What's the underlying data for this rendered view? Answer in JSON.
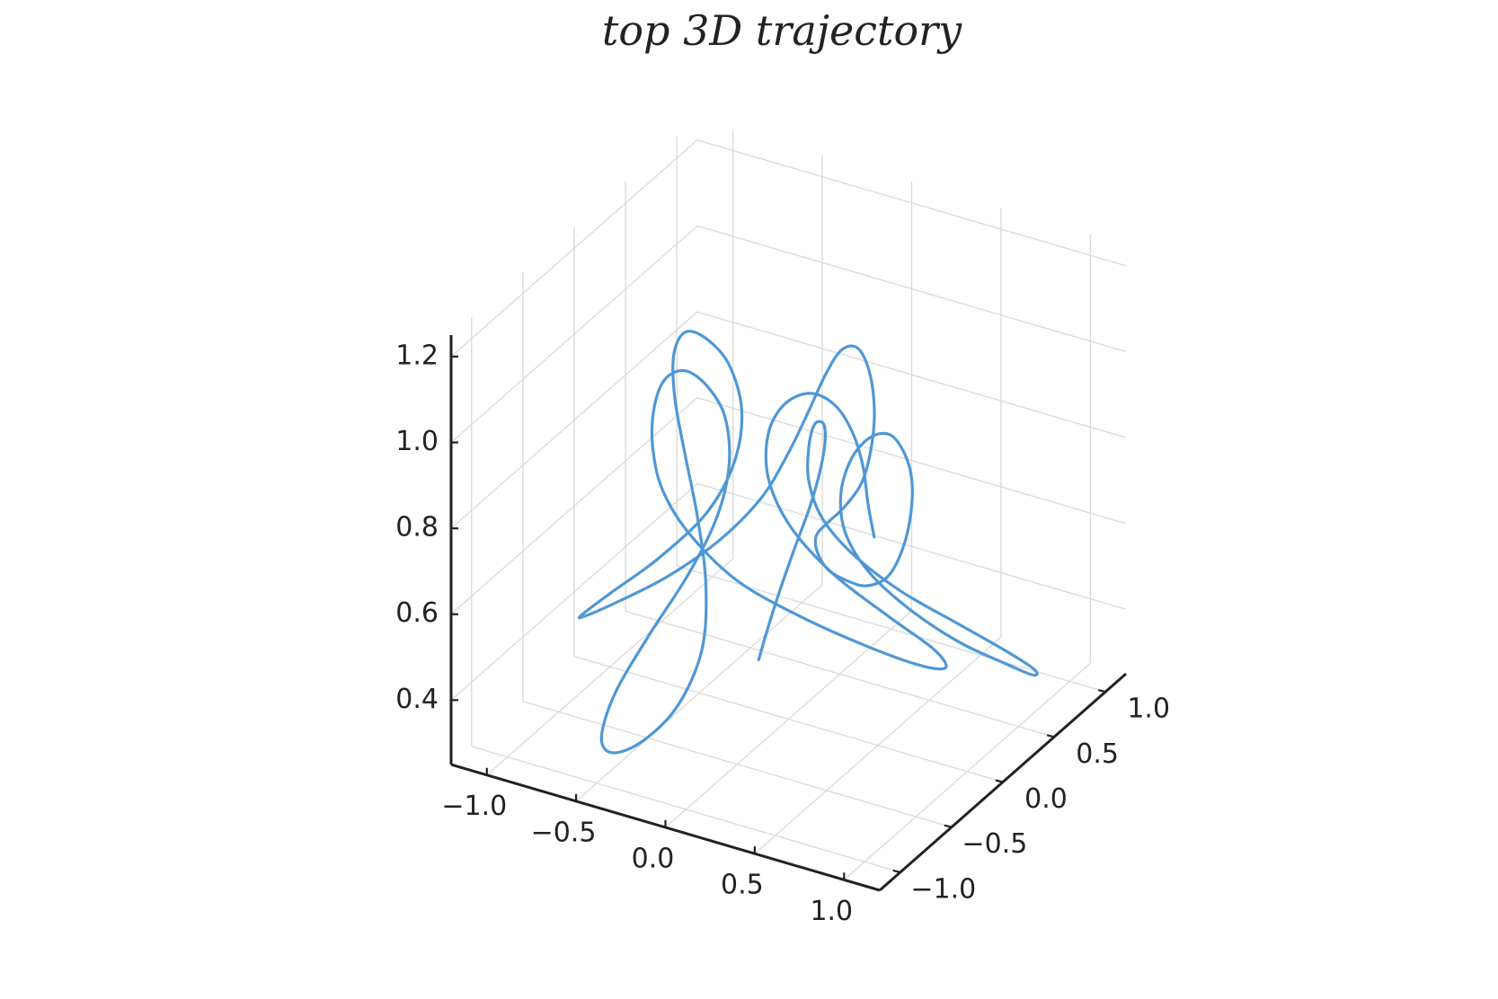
{
  "chart_data": {
    "type": "line",
    "title": "top 3D trajectory",
    "xlabel": "",
    "ylabel": "",
    "zlabel": "",
    "xlim": [
      -1.2,
      1.2
    ],
    "ylim": [
      -1.2,
      1.2
    ],
    "zlim": [
      0.25,
      1.25
    ],
    "grid": true,
    "legend": "none",
    "colors": {
      "series": "#4f97d6",
      "axis": "#222222",
      "grid": "#d9d9d9"
    },
    "x_ticks": [
      {
        "value": -1.0,
        "label": "−1.0"
      },
      {
        "value": -0.5,
        "label": "−0.5"
      },
      {
        "value": 0.0,
        "label": "0.0"
      },
      {
        "value": 0.5,
        "label": "0.5"
      },
      {
        "value": 1.0,
        "label": "1.0"
      }
    ],
    "y_ticks": [
      {
        "value": -1.0,
        "label": "−1.0"
      },
      {
        "value": -0.5,
        "label": "−0.5"
      },
      {
        "value": 0.0,
        "label": "0.0"
      },
      {
        "value": 0.5,
        "label": "0.5"
      },
      {
        "value": 1.0,
        "label": "1.0"
      }
    ],
    "z_ticks": [
      {
        "value": 0.4,
        "label": "0.4"
      },
      {
        "value": 0.6,
        "label": "0.6"
      },
      {
        "value": 0.8,
        "label": "0.8"
      },
      {
        "value": 1.0,
        "label": "1.0"
      },
      {
        "value": 1.2,
        "label": "1.2"
      }
    ],
    "series": [
      {
        "points": [
          [
            0.35,
            -0.9,
            0.62
          ],
          [
            0.38,
            -0.88,
            0.68
          ],
          [
            0.42,
            -0.84,
            0.76
          ],
          [
            0.47,
            -0.77,
            0.86
          ],
          [
            0.51,
            -0.66,
            0.96
          ],
          [
            0.5,
            -0.53,
            1.04
          ],
          [
            0.43,
            -0.4,
            1.07
          ],
          [
            0.32,
            -0.3,
            1.04
          ],
          [
            0.24,
            -0.22,
            0.96
          ],
          [
            0.2,
            -0.15,
            0.86
          ],
          [
            0.23,
            -0.07,
            0.76
          ],
          [
            0.33,
            0.06,
            0.66
          ],
          [
            0.5,
            0.23,
            0.56
          ],
          [
            0.71,
            0.42,
            0.47
          ],
          [
            0.9,
            0.56,
            0.4
          ],
          [
            1.02,
            0.62,
            0.36
          ],
          [
            1.04,
            0.57,
            0.36
          ],
          [
            0.97,
            0.42,
            0.41
          ],
          [
            0.84,
            0.2,
            0.49
          ],
          [
            0.7,
            -0.04,
            0.6
          ],
          [
            0.6,
            -0.26,
            0.72
          ],
          [
            0.56,
            -0.42,
            0.84
          ],
          [
            0.58,
            -0.5,
            0.95
          ],
          [
            0.64,
            -0.5,
            1.04
          ],
          [
            0.7,
            -0.42,
            1.08
          ],
          [
            0.73,
            -0.28,
            1.06
          ],
          [
            0.72,
            -0.12,
            0.98
          ],
          [
            0.68,
            0.02,
            0.88
          ],
          [
            0.6,
            0.14,
            0.76
          ],
          [
            0.48,
            0.26,
            0.64
          ],
          [
            0.31,
            0.42,
            0.53
          ],
          [
            0.08,
            0.62,
            0.44
          ],
          [
            -0.15,
            0.83,
            0.38
          ],
          [
            -0.34,
            0.98,
            0.35
          ],
          [
            -0.43,
            1.03,
            0.37
          ],
          [
            -0.39,
            0.95,
            0.43
          ],
          [
            -0.22,
            0.76,
            0.52
          ],
          [
            0.0,
            0.55,
            0.63
          ],
          [
            0.2,
            0.37,
            0.75
          ],
          [
            0.32,
            0.25,
            0.87
          ],
          [
            0.36,
            0.21,
            0.97
          ],
          [
            0.32,
            0.23,
            1.05
          ],
          [
            0.22,
            0.29,
            1.08
          ],
          [
            0.1,
            0.34,
            1.05
          ],
          [
            -0.01,
            0.37,
            0.97
          ],
          [
            -0.11,
            0.38,
            0.87
          ],
          [
            -0.22,
            0.37,
            0.76
          ],
          [
            -0.35,
            0.34,
            0.65
          ],
          [
            -0.55,
            0.27,
            0.54
          ],
          [
            -0.78,
            0.17,
            0.45
          ],
          [
            -0.99,
            0.06,
            0.39
          ],
          [
            -1.12,
            -0.03,
            0.36
          ],
          [
            -1.12,
            -0.07,
            0.37
          ],
          [
            -0.98,
            -0.03,
            0.43
          ],
          [
            -0.76,
            0.06,
            0.52
          ],
          [
            -0.55,
            0.16,
            0.63
          ],
          [
            -0.43,
            0.22,
            0.75
          ],
          [
            -0.4,
            0.24,
            0.87
          ],
          [
            -0.45,
            0.2,
            0.98
          ],
          [
            -0.53,
            0.11,
            1.05
          ],
          [
            -0.58,
            0.0,
            1.08
          ],
          [
            -0.58,
            -0.11,
            1.05
          ],
          [
            -0.51,
            -0.22,
            0.98
          ],
          [
            -0.4,
            -0.31,
            0.88
          ],
          [
            -0.28,
            -0.4,
            0.77
          ],
          [
            -0.17,
            -0.51,
            0.65
          ],
          [
            -0.1,
            -0.67,
            0.54
          ],
          [
            -0.12,
            -0.87,
            0.45
          ],
          [
            -0.22,
            -1.03,
            0.39
          ],
          [
            -0.35,
            -1.1,
            0.36
          ],
          [
            -0.45,
            -1.04,
            0.37
          ],
          [
            -0.48,
            -0.86,
            0.43
          ],
          [
            -0.43,
            -0.62,
            0.52
          ],
          [
            -0.33,
            -0.41,
            0.63
          ],
          [
            -0.24,
            -0.28,
            0.75
          ],
          [
            -0.2,
            -0.23,
            0.87
          ],
          [
            -0.22,
            -0.24,
            0.98
          ],
          [
            -0.3,
            -0.28,
            1.05
          ],
          [
            -0.4,
            -0.32,
            1.08
          ],
          [
            -0.5,
            -0.34,
            1.05
          ],
          [
            -0.57,
            -0.32,
            0.97
          ],
          [
            -0.6,
            -0.28,
            0.87
          ],
          [
            -0.58,
            -0.22,
            0.76
          ],
          [
            -0.48,
            -0.13,
            0.65
          ],
          [
            -0.28,
            -0.01,
            0.54
          ],
          [
            0.0,
            0.13,
            0.46
          ],
          [
            0.3,
            0.26,
            0.4
          ],
          [
            0.55,
            0.34,
            0.37
          ],
          [
            0.68,
            0.35,
            0.38
          ],
          [
            0.66,
            0.26,
            0.44
          ],
          [
            0.5,
            0.1,
            0.53
          ],
          [
            0.3,
            -0.08,
            0.64
          ],
          [
            0.14,
            -0.22,
            0.76
          ],
          [
            0.06,
            -0.3,
            0.88
          ],
          [
            0.07,
            -0.32,
            0.99
          ],
          [
            0.14,
            -0.28,
            1.06
          ],
          [
            0.24,
            -0.2,
            1.08
          ],
          [
            0.32,
            -0.1,
            1.04
          ],
          [
            0.36,
            0.0,
            0.96
          ],
          [
            0.36,
            0.1,
            0.86
          ],
          [
            0.33,
            0.2,
            0.75
          ],
          [
            0.29,
            0.33,
            0.64
          ]
        ]
      }
    ]
  }
}
